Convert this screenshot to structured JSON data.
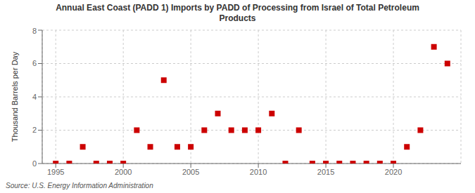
{
  "chart_data": {
    "type": "scatter",
    "title": "Annual East Coast (PADD 1) Imports by PADD of Processing from Israel of Total Petroleum\nProducts",
    "ylabel": "Thousand Barrels per Day",
    "annotations": [
      "Source: U.S. Energy Information Administration"
    ],
    "x": [
      1995,
      1996,
      1997,
      1998,
      1999,
      2000,
      2001,
      2002,
      2003,
      2004,
      2005,
      2006,
      2007,
      2008,
      2009,
      2010,
      2011,
      2012,
      2013,
      2014,
      2015,
      2016,
      2017,
      2018,
      2019,
      2020,
      2021,
      2022,
      2023,
      2024
    ],
    "values": [
      0,
      0,
      1,
      0,
      0,
      0,
      2,
      1,
      5,
      1,
      1,
      2,
      3,
      2,
      2,
      2,
      3,
      0,
      2,
      0,
      0,
      0,
      0,
      0,
      0,
      0,
      1,
      2,
      7,
      6
    ],
    "color": "#cc0000",
    "marker": "square",
    "xlim": [
      1994,
      2025
    ],
    "xticks": [
      1995,
      2000,
      2005,
      2010,
      2015,
      2020
    ],
    "ylim": [
      0,
      8
    ],
    "yticks": [
      0,
      2,
      4,
      6,
      8
    ],
    "grid": true
  }
}
